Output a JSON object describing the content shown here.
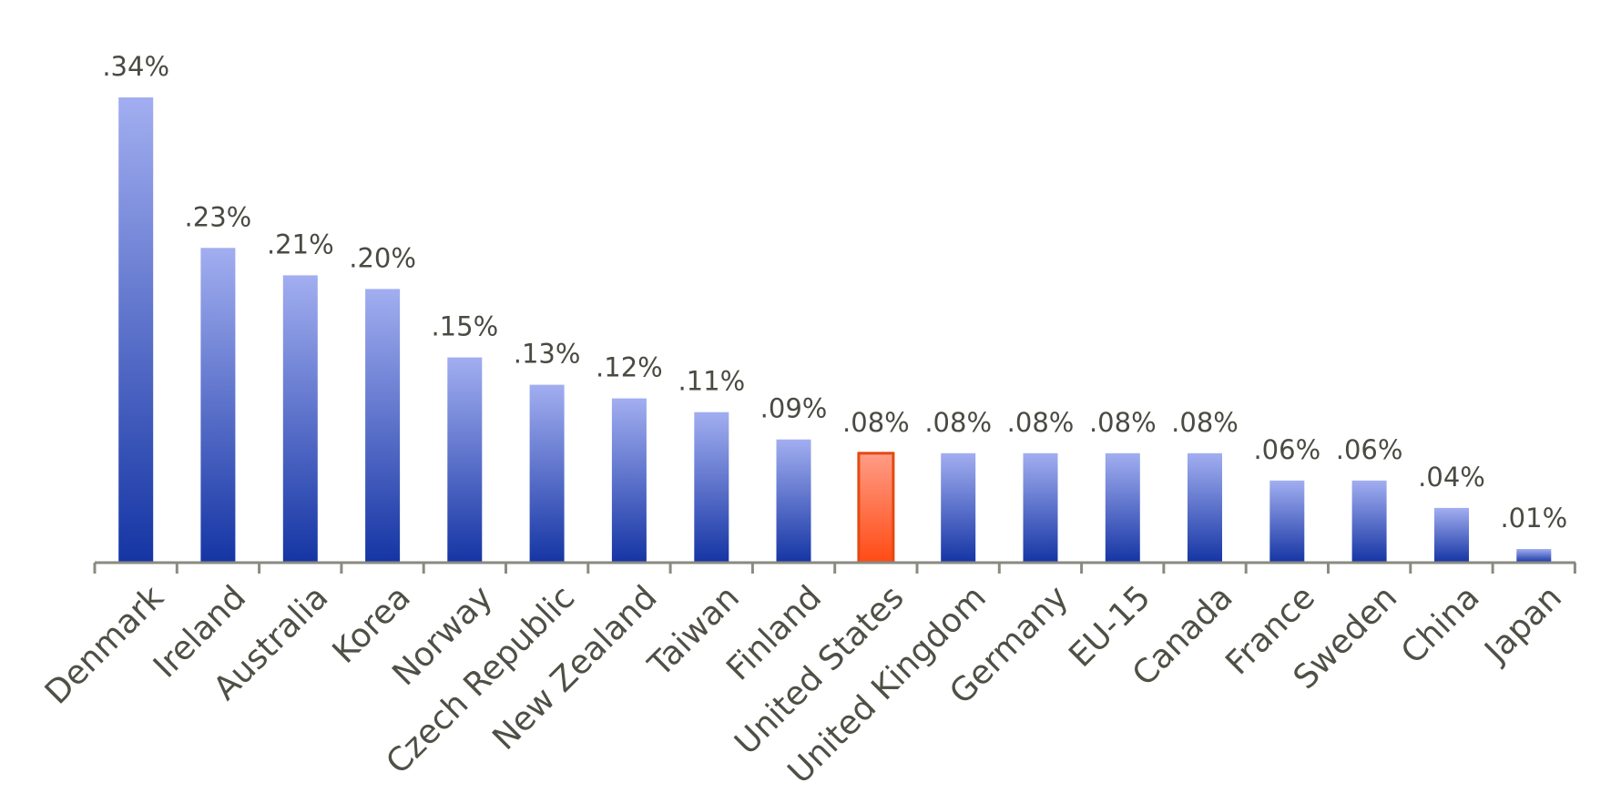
{
  "colors": {
    "bar_top": "#a2aef0",
    "bar_bottom": "#1535a4",
    "highlight_top": "#ff9c86",
    "highlight_bottom": "#ff4b14",
    "highlight_stroke": "#e24a12",
    "axis": "#8a8a82",
    "text": "#4a4a42"
  },
  "chart_data": {
    "type": "bar",
    "title": "",
    "xlabel": "",
    "ylabel": "",
    "ylim": [
      0,
      0.34
    ],
    "grid": false,
    "legend": "none",
    "categories": [
      "Denmark",
      "Ireland",
      "Australia",
      "Korea",
      "Norway",
      "Czech Republic",
      "New Zealand",
      "Taiwan",
      "Finland",
      "United States",
      "United Kingdom",
      "Germany",
      "EU-15",
      "Canada",
      "France",
      "Sweden",
      "China",
      "Japan"
    ],
    "values": [
      0.34,
      0.23,
      0.21,
      0.2,
      0.15,
      0.13,
      0.12,
      0.11,
      0.09,
      0.08,
      0.08,
      0.08,
      0.08,
      0.08,
      0.06,
      0.06,
      0.04,
      0.01
    ],
    "value_labels": [
      ".34%",
      ".23%",
      ".21%",
      ".20%",
      ".15%",
      ".13%",
      ".12%",
      ".11%",
      ".09%",
      ".08%",
      ".08%",
      ".08%",
      ".08%",
      ".08%",
      ".06%",
      ".06%",
      ".04%",
      ".01%"
    ],
    "highlight_category": "United States"
  }
}
